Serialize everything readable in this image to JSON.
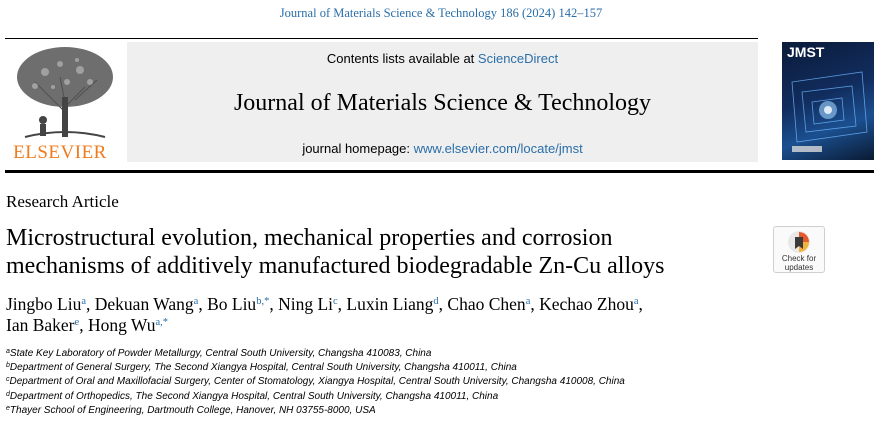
{
  "header": {
    "citation": "Journal of Materials Science & Technology 186 (2024) 142–157",
    "contents_prefix": "Contents lists available at ",
    "contents_link": "ScienceDirect",
    "journal_title": "Journal of Materials Science & Technology",
    "homepage_prefix": "journal homepage: ",
    "homepage_link": "www.elsevier.com/locate/jmst",
    "publisher": "ELSEVIER",
    "cover_title": "JMST",
    "badge": {
      "line1": "Check for",
      "line2": "updates"
    }
  },
  "article": {
    "type": "Research Article",
    "title_line1": "Microstructural evolution, mechanical properties and corrosion",
    "title_line2": "mechanisms of additively manufactured biodegradable Zn-Cu alloys"
  },
  "authors": [
    {
      "name": "Jingbo Liu",
      "sup": "a",
      "sep": ", "
    },
    {
      "name": "Dekuan Wang",
      "sup": "a",
      "sep": ", "
    },
    {
      "name": "Bo Liu",
      "sup": "b,*",
      "sep": ", "
    },
    {
      "name": "Ning Li",
      "sup": "c",
      "sep": ", "
    },
    {
      "name": "Luxin Liang",
      "sup": "d",
      "sep": ", "
    },
    {
      "name": "Chao Chen",
      "sup": "a",
      "sep": ", "
    },
    {
      "name": "Kechao Zhou",
      "sup": "a",
      "sep": ","
    },
    {
      "name": "Ian Baker",
      "sup": "e",
      "sep": ", "
    },
    {
      "name": "Hong Wu",
      "sup": "a,*",
      "sep": ""
    }
  ],
  "affiliations": [
    {
      "sup": "a",
      "text": "State Key Laboratory of Powder Metallurgy, Central South University, Changsha 410083, China"
    },
    {
      "sup": "b",
      "text": "Department of General Surgery, The Second Xiangya Hospital, Central South University, Changsha 410011, China"
    },
    {
      "sup": "c",
      "text": "Department of Oral and Maxillofacial Surgery, Center of Stomatology, Xiangya Hospital, Central South University, Changsha 410008, China"
    },
    {
      "sup": "d",
      "text": "Department of Orthopedics, The Second Xiangya Hospital, Central South University, Changsha 410011, China"
    },
    {
      "sup": "e",
      "text": "Thayer School of Engineering, Dartmouth College, Hanover, NH 03755-8000, USA"
    }
  ],
  "colors": {
    "link": "#2a6ea8",
    "elsevier_orange": "#f07b1c",
    "banner_bg": "#efefef"
  }
}
